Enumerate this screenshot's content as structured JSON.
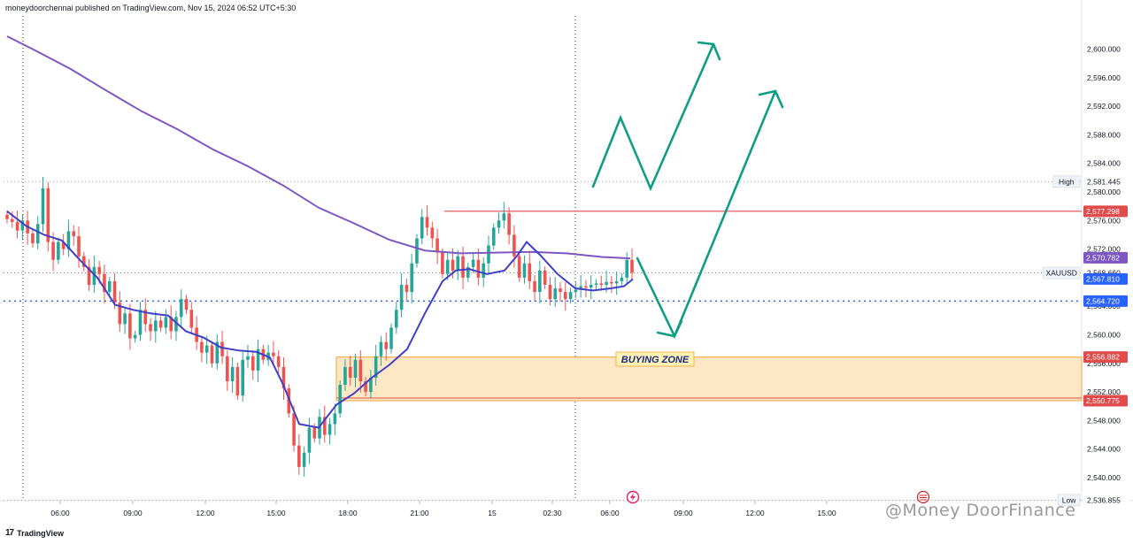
{
  "header": {
    "publisher": "moneydoorchennai published on TradingView.com, Nov 15, 2024 06:52 UTC+5:30"
  },
  "footer": {
    "logo_mark": "17",
    "logo_text": "TradingView"
  },
  "watermark": {
    "text": "@Money  DoorFinance"
  },
  "colors": {
    "bull": "#26a69a",
    "bear": "#ef5350",
    "ma_fast": "#3f3fc8",
    "ma_slow": "#7e57c2",
    "arrow": "#0e9e86",
    "zone_fill": "#fde7c4",
    "zone_border": "#f2a53a",
    "red_line": "#e04c4c",
    "dotted_blue": "#2962ff"
  },
  "chart_data": {
    "type": "candlestick",
    "symbol": "XAUUSD",
    "ylim": [
      2535.5,
      2602.0
    ],
    "y_ticks": [
      2540,
      2544,
      2548,
      2552,
      2556,
      2560,
      2564,
      2568,
      2572,
      2576,
      2580,
      2584,
      2588,
      2592,
      2596,
      2600
    ],
    "x_ticks": [
      "06:00",
      "09:00",
      "12:00",
      "15:00",
      "18:00",
      "21:00",
      "15",
      "02:30",
      "06:00",
      "09:00",
      "12:00",
      "15:00"
    ],
    "price_tags": [
      {
        "label": "High",
        "value": "2,581.445",
        "price": 2581.445,
        "style": "plain"
      },
      {
        "label": "",
        "value": "2,577.298",
        "price": 2577.298,
        "style": "red"
      },
      {
        "label": "",
        "value": "2,570.782",
        "price": 2570.782,
        "style": "purple"
      },
      {
        "label": "XAUUSD",
        "value": "2,568.660",
        "price": 2568.66,
        "style": "plain"
      },
      {
        "label": "",
        "value": "2,567.810",
        "price": 2567.81,
        "style": "blue"
      },
      {
        "label": "",
        "value": "2,564.720",
        "price": 2564.72,
        "style": "blue"
      },
      {
        "label": "",
        "value": "2,556.882",
        "price": 2556.882,
        "style": "red"
      },
      {
        "label": "",
        "value": "2,550.775",
        "price": 2550.775,
        "style": "red"
      },
      {
        "label": "Low",
        "value": "2,536.855",
        "price": 2536.855,
        "style": "plain"
      }
    ],
    "candle_closes": [
      2576.2,
      2575.8,
      2574.6,
      2576.0,
      2574.2,
      2572.8,
      2575.5,
      2580.5,
      2573.0,
      2570.5,
      2573.0,
      2572.0,
      2574.5,
      2573.8,
      2571.0,
      2569.5,
      2567.0,
      2569.5,
      2568.5,
      2566.0,
      2567.5,
      2564.5,
      2561.5,
      2563.0,
      2559.5,
      2560.0,
      2563.5,
      2561.5,
      2560.5,
      2562.0,
      2561.0,
      2562.5,
      2560.5,
      2562.5,
      2565.0,
      2563.5,
      2561.0,
      2559.0,
      2557.5,
      2558.5,
      2556.0,
      2559.0,
      2557.0,
      2553.5,
      2555.5,
      2551.5,
      2556.5,
      2557.0,
      2555.0,
      2558.0,
      2556.5,
      2557.5,
      2557.0,
      2555.5,
      2552.5,
      2549.0,
      2544.5,
      2541.5,
      2543.5,
      2547.0,
      2545.5,
      2548.5,
      2546.0,
      2547.5,
      2549.0,
      2553.0,
      2555.5,
      2554.0,
      2556.5,
      2553.5,
      2552.0,
      2554.0,
      2557.0,
      2559.0,
      2558.0,
      2561.0,
      2563.5,
      2567.0,
      2566.0,
      2570.0,
      2573.5,
      2576.5,
      2575.0,
      2573.5,
      2571.5,
      2568.5,
      2570.5,
      2569.0,
      2571.0,
      2568.0,
      2569.5,
      2570.5,
      2568.0,
      2570.0,
      2572.5,
      2575.0,
      2576.0,
      2577.0,
      2574.0,
      2571.0,
      2568.0,
      2570.0,
      2567.5,
      2566.0,
      2569.0,
      2567.0,
      2565.0,
      2566.5,
      2566.0,
      2565.0,
      2566.0,
      2566.3,
      2566.8,
      2566.6,
      2567.0,
      2567.2,
      2567.0,
      2567.4,
      2567.2,
      2567.5,
      2568.0,
      2570.5,
      2568.7
    ],
    "ma_fast": [
      [
        8,
        2577.3
      ],
      [
        30,
        2575.2
      ],
      [
        50,
        2574.0
      ],
      [
        70,
        2573.2
      ],
      [
        90,
        2570.5
      ],
      [
        110,
        2568.0
      ],
      [
        130,
        2564.2
      ],
      [
        150,
        2563.5
      ],
      [
        170,
        2563.0
      ],
      [
        190,
        2562.7
      ],
      [
        210,
        2560.5
      ],
      [
        230,
        2559.6
      ],
      [
        250,
        2558.2
      ],
      [
        270,
        2557.8
      ],
      [
        290,
        2557.6
      ],
      [
        305,
        2556.8
      ],
      [
        320,
        2553.0
      ],
      [
        338,
        2547.5
      ],
      [
        360,
        2547.0
      ],
      [
        380,
        2550.2
      ],
      [
        400,
        2551.8
      ],
      [
        420,
        2554.0
      ],
      [
        440,
        2555.8
      ],
      [
        460,
        2558.0
      ],
      [
        480,
        2563.0
      ],
      [
        500,
        2567.5
      ],
      [
        515,
        2569.0
      ],
      [
        530,
        2569.2
      ],
      [
        550,
        2568.5
      ],
      [
        570,
        2569.0
      ],
      [
        585,
        2571.2
      ],
      [
        595,
        2573.0
      ],
      [
        610,
        2571.2
      ],
      [
        630,
        2568.5
      ],
      [
        650,
        2566.5
      ],
      [
        670,
        2566.2
      ],
      [
        690,
        2566.5
      ],
      [
        705,
        2566.8
      ],
      [
        715,
        2567.8
      ]
    ],
    "ma_slow": [
      [
        8,
        2601.8
      ],
      [
        40,
        2599.8
      ],
      [
        80,
        2597.2
      ],
      [
        120,
        2594.2
      ],
      [
        160,
        2591.3
      ],
      [
        200,
        2588.8
      ],
      [
        240,
        2586.0
      ],
      [
        280,
        2583.6
      ],
      [
        320,
        2580.9
      ],
      [
        360,
        2577.8
      ],
      [
        400,
        2575.6
      ],
      [
        440,
        2573.3
      ],
      [
        480,
        2571.8
      ],
      [
        520,
        2571.4
      ],
      [
        560,
        2571.5
      ],
      [
        600,
        2571.6
      ],
      [
        640,
        2571.4
      ],
      [
        680,
        2570.9
      ],
      [
        712,
        2570.7
      ]
    ],
    "annotations": {
      "buying_zone": {
        "label": "BUYING ZONE",
        "top_price": 2556.882,
        "bottom_price": 2550.775
      },
      "resistance_price": 2577.298,
      "dotted_level_price": 2564.72,
      "dotted_level_2_price": 2568.66
    }
  }
}
